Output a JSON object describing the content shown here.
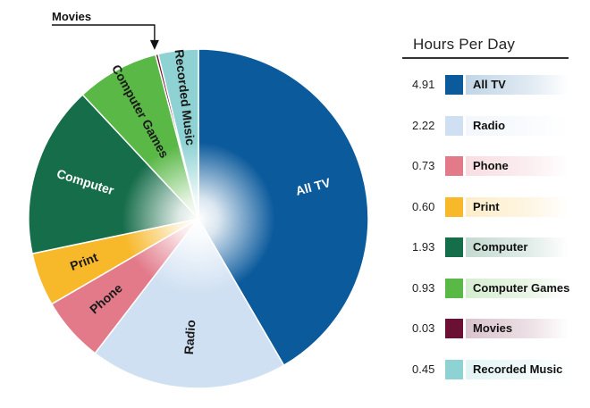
{
  "chart_data": {
    "type": "pie",
    "title": "",
    "legend_title": "Hours Per Day",
    "legend_position": "right",
    "slices": [
      {
        "label": "All TV",
        "value": 4.91,
        "display": "4.91",
        "color": "#0b5a9c",
        "text_color": "#ffffff"
      },
      {
        "label": "Radio",
        "value": 2.22,
        "display": "2.22",
        "color": "#cfe0f2",
        "text_color": "#1a1a1a"
      },
      {
        "label": "Phone",
        "value": 0.73,
        "display": "0.73",
        "color": "#e27a8a",
        "text_color": "#1a1a1a"
      },
      {
        "label": "Print",
        "value": 0.6,
        "display": "0.60",
        "color": "#f7b82a",
        "text_color": "#1a1a1a"
      },
      {
        "label": "Computer",
        "value": 1.93,
        "display": "1.93",
        "color": "#166d4a",
        "text_color": "#ffffff"
      },
      {
        "label": "Computer Games",
        "value": 0.93,
        "display": "0.93",
        "color": "#5ab846",
        "text_color": "#1a1a1a"
      },
      {
        "label": "Movies",
        "value": 0.03,
        "display": "0.03",
        "color": "#6b0f35",
        "text_color": "#1a1a1a"
      },
      {
        "label": "Recorded Music",
        "value": 0.45,
        "display": "0.45",
        "color": "#8fd2d4",
        "text_color": "#1a1a1a"
      }
    ],
    "callout_label": "Movies"
  }
}
